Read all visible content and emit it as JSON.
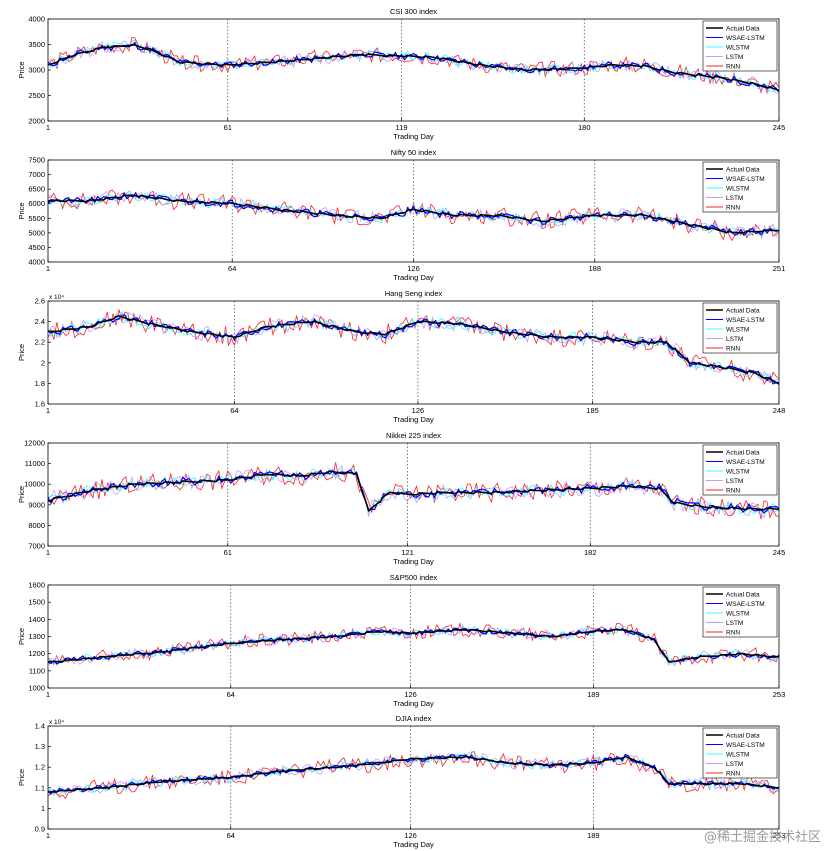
{
  "watermark": "@稀土掘金技术社区",
  "legend_labels": [
    "Actual Data",
    "WSAE-LSTM",
    "WLSTM",
    "LSTM",
    "RNN"
  ],
  "series_colors": [
    "#000000",
    "#0000ff",
    "#33ffff",
    "#b8a3ff",
    "#ff2020"
  ],
  "chart_data": [
    {
      "type": "line",
      "title": "CSI 300 index",
      "xlabel": "Trading Day",
      "ylabel": "Price",
      "ylim": [
        2000,
        4000
      ],
      "yticks": [
        "2000",
        "2500",
        "3000",
        "3500",
        "4000"
      ],
      "exponent": "",
      "xlim": [
        1,
        245
      ],
      "xticks": [
        1,
        61,
        119,
        180,
        245
      ],
      "vlines": [
        61,
        119,
        180
      ],
      "actual_points": [
        [
          1,
          3100
        ],
        [
          10,
          3300
        ],
        [
          20,
          3450
        ],
        [
          30,
          3480
        ],
        [
          35,
          3400
        ],
        [
          45,
          3150
        ],
        [
          61,
          3100
        ],
        [
          75,
          3150
        ],
        [
          90,
          3220
        ],
        [
          105,
          3300
        ],
        [
          119,
          3280
        ],
        [
          130,
          3250
        ],
        [
          145,
          3100
        ],
        [
          160,
          3000
        ],
        [
          175,
          3020
        ],
        [
          190,
          3100
        ],
        [
          200,
          3080
        ],
        [
          210,
          2950
        ],
        [
          225,
          2850
        ],
        [
          235,
          2750
        ],
        [
          245,
          2600
        ]
      ],
      "noise": [
        60,
        90,
        120,
        150
      ],
      "seeds": [
        11,
        12,
        13,
        14
      ]
    },
    {
      "type": "line",
      "title": "Nifty 50 index",
      "xlabel": "Trading Day",
      "ylabel": "Price",
      "ylim": [
        4000,
        7500
      ],
      "yticks": [
        "4000",
        "4500",
        "5000",
        "5500",
        "6000",
        "6500",
        "7000",
        "7500"
      ],
      "exponent": "",
      "xlim": [
        1,
        251
      ],
      "xticks": [
        1,
        64,
        126,
        188,
        251
      ],
      "vlines": [
        64,
        126,
        188
      ],
      "actual_points": [
        [
          1,
          6100
        ],
        [
          15,
          6100
        ],
        [
          30,
          6300
        ],
        [
          45,
          6100
        ],
        [
          64,
          6000
        ],
        [
          80,
          5800
        ],
        [
          100,
          5600
        ],
        [
          115,
          5500
        ],
        [
          126,
          5800
        ],
        [
          140,
          5600
        ],
        [
          155,
          5600
        ],
        [
          170,
          5400
        ],
        [
          188,
          5600
        ],
        [
          205,
          5600
        ],
        [
          220,
          5300
        ],
        [
          235,
          5000
        ],
        [
          251,
          5100
        ]
      ],
      "noise": [
        110,
        160,
        230,
        300
      ],
      "seeds": [
        21,
        22,
        23,
        24
      ]
    },
    {
      "type": "line",
      "title": "Hang Seng index",
      "xlabel": "Trading Day",
      "ylabel": "Price",
      "ylim": [
        1.6,
        2.6
      ],
      "yticks": [
        "1.6",
        "1.8",
        "2",
        "2.2",
        "2.4",
        "2.6"
      ],
      "exponent": "x 10⁴",
      "xlim": [
        1,
        248
      ],
      "xticks": [
        1,
        64,
        126,
        185,
        248
      ],
      "vlines": [
        64,
        126,
        185
      ],
      "actual_points": [
        [
          1,
          2.3
        ],
        [
          15,
          2.35
        ],
        [
          25,
          2.45
        ],
        [
          35,
          2.38
        ],
        [
          50,
          2.3
        ],
        [
          64,
          2.25
        ],
        [
          75,
          2.35
        ],
        [
          90,
          2.4
        ],
        [
          105,
          2.3
        ],
        [
          115,
          2.28
        ],
        [
          126,
          2.4
        ],
        [
          140,
          2.38
        ],
        [
          155,
          2.3
        ],
        [
          170,
          2.25
        ],
        [
          185,
          2.25
        ],
        [
          200,
          2.2
        ],
        [
          210,
          2.2
        ],
        [
          218,
          2.0
        ],
        [
          230,
          1.95
        ],
        [
          240,
          1.9
        ],
        [
          248,
          1.8
        ]
      ],
      "noise": [
        0.03,
        0.05,
        0.07,
        0.09
      ],
      "seeds": [
        31,
        32,
        33,
        34
      ]
    },
    {
      "type": "line",
      "title": "Nikkei 225 index",
      "xlabel": "Trading Day",
      "ylabel": "Price",
      "ylim": [
        7000,
        12000
      ],
      "yticks": [
        "7000",
        "8000",
        "9000",
        "10000",
        "11000",
        "12000"
      ],
      "exponent": "",
      "xlim": [
        1,
        245
      ],
      "xticks": [
        1,
        61,
        121,
        182,
        245
      ],
      "vlines": [
        61,
        121,
        182
      ],
      "actual_points": [
        [
          1,
          9200
        ],
        [
          15,
          9700
        ],
        [
          30,
          10000
        ],
        [
          45,
          10100
        ],
        [
          61,
          10200
        ],
        [
          75,
          10500
        ],
        [
          85,
          10400
        ],
        [
          95,
          10600
        ],
        [
          104,
          10500
        ],
        [
          108,
          8700
        ],
        [
          115,
          9600
        ],
        [
          121,
          9500
        ],
        [
          135,
          9600
        ],
        [
          150,
          9600
        ],
        [
          165,
          9700
        ],
        [
          182,
          9800
        ],
        [
          195,
          9900
        ],
        [
          205,
          9800
        ],
        [
          210,
          9100
        ],
        [
          220,
          8900
        ],
        [
          235,
          8800
        ],
        [
          245,
          8800
        ]
      ],
      "noise": [
        180,
        260,
        380,
        480
      ],
      "seeds": [
        41,
        42,
        43,
        44
      ]
    },
    {
      "type": "line",
      "title": "S&P500 index",
      "xlabel": "Trading Day",
      "ylabel": "Price",
      "ylim": [
        1000,
        1600
      ],
      "yticks": [
        "1000",
        "1100",
        "1200",
        "1300",
        "1400",
        "1500",
        "1600"
      ],
      "exponent": "",
      "xlim": [
        1,
        253
      ],
      "xticks": [
        1,
        64,
        126,
        189,
        253
      ],
      "vlines": [
        64,
        126,
        189
      ],
      "actual_points": [
        [
          1,
          1150
        ],
        [
          20,
          1180
        ],
        [
          40,
          1210
        ],
        [
          64,
          1260
        ],
        [
          80,
          1280
        ],
        [
          100,
          1300
        ],
        [
          115,
          1330
        ],
        [
          126,
          1320
        ],
        [
          145,
          1340
        ],
        [
          160,
          1320
        ],
        [
          175,
          1300
        ],
        [
          189,
          1330
        ],
        [
          200,
          1340
        ],
        [
          210,
          1280
        ],
        [
          215,
          1150
        ],
        [
          225,
          1180
        ],
        [
          240,
          1200
        ],
        [
          253,
          1180
        ]
      ],
      "noise": [
        14,
        22,
        30,
        40
      ],
      "seeds": [
        51,
        52,
        53,
        54
      ]
    },
    {
      "type": "line",
      "title": "DJIA index",
      "xlabel": "Trading Day",
      "ylabel": "Price",
      "ylim": [
        0.9,
        1.4
      ],
      "yticks": [
        "0.9",
        "1",
        "1.1",
        "1.2",
        "1.3",
        "1.4"
      ],
      "exponent": "x 10⁴",
      "xlim": [
        1,
        253
      ],
      "xticks": [
        1,
        64,
        126,
        189,
        253
      ],
      "vlines": [
        64,
        126,
        189
      ],
      "actual_points": [
        [
          1,
          1.08
        ],
        [
          20,
          1.1
        ],
        [
          40,
          1.13
        ],
        [
          64,
          1.15
        ],
        [
          80,
          1.18
        ],
        [
          100,
          1.2
        ],
        [
          115,
          1.22
        ],
        [
          126,
          1.24
        ],
        [
          145,
          1.25
        ],
        [
          160,
          1.22
        ],
        [
          175,
          1.21
        ],
        [
          189,
          1.22
        ],
        [
          200,
          1.25
        ],
        [
          210,
          1.2
        ],
        [
          215,
          1.12
        ],
        [
          225,
          1.12
        ],
        [
          240,
          1.12
        ],
        [
          253,
          1.1
        ]
      ],
      "noise": [
        0.012,
        0.02,
        0.028,
        0.04
      ],
      "seeds": [
        61,
        62,
        63,
        64
      ]
    }
  ]
}
